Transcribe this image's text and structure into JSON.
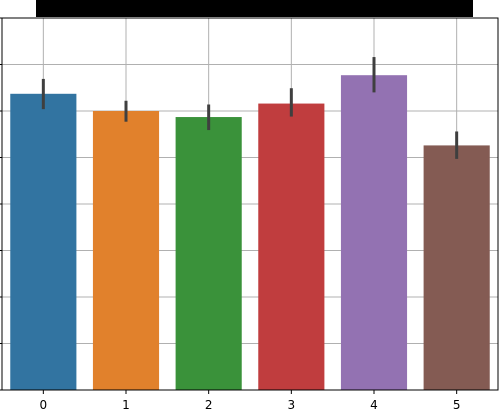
{
  "title_bar": {
    "color": "#000000"
  },
  "chart_data": {
    "type": "bar",
    "categories": [
      "0",
      "1",
      "2",
      "3",
      "4",
      "5"
    ],
    "values": [
      0.637,
      0.6,
      0.587,
      0.616,
      0.677,
      0.526
    ],
    "error_low": [
      0.604,
      0.577,
      0.559,
      0.588,
      0.64,
      0.497
    ],
    "error_high": [
      0.669,
      0.622,
      0.614,
      0.649,
      0.716,
      0.556
    ],
    "ylim": [
      0,
      0.8
    ],
    "grid": true,
    "legend": "none",
    "colors": [
      "#3274a1",
      "#e1812c",
      "#3a923a",
      "#c03d3e",
      "#9372b2",
      "#845b53"
    ],
    "error_bar_color": "#3f3f3f",
    "grid_color": "#b0b0b0"
  }
}
